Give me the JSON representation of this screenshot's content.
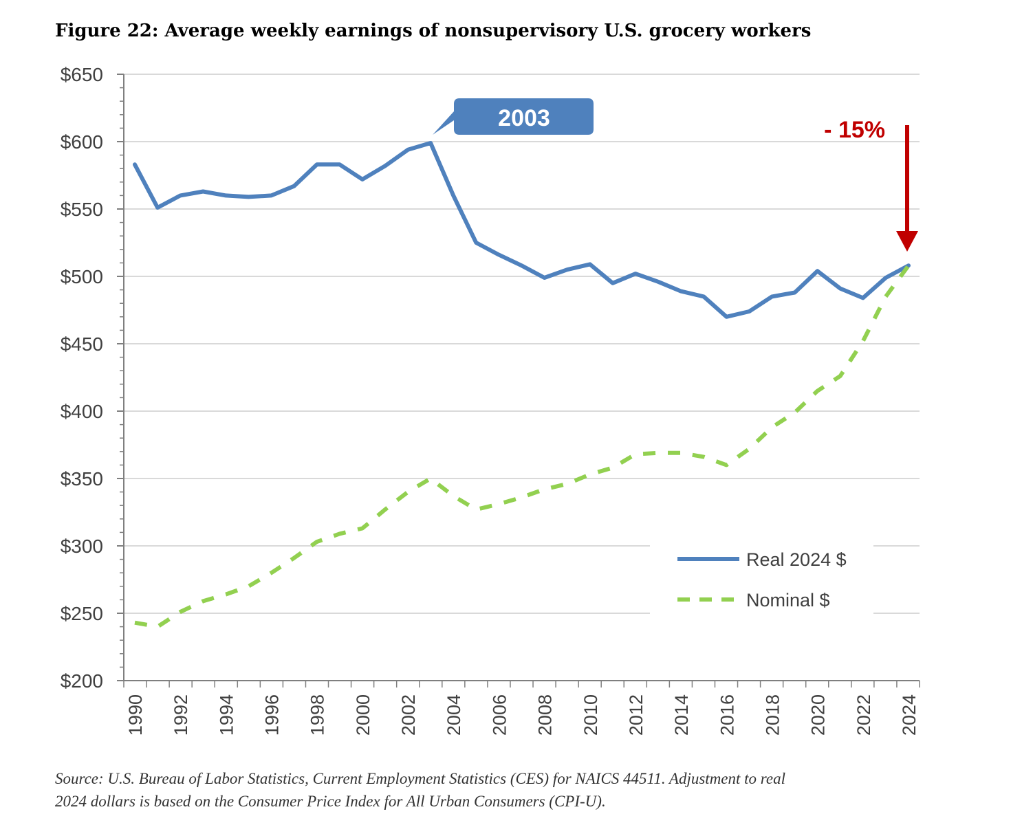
{
  "chart_data": {
    "type": "line",
    "title": "Figure 22: Average weekly earnings of nonsupervisory U.S. grocery workers",
    "xlabel": "",
    "ylabel": "",
    "x": [
      1990,
      1991,
      1992,
      1993,
      1994,
      1995,
      1996,
      1997,
      1998,
      1999,
      2000,
      2001,
      2002,
      2003,
      2004,
      2005,
      2006,
      2007,
      2008,
      2009,
      2010,
      2011,
      2012,
      2013,
      2014,
      2015,
      2016,
      2017,
      2018,
      2019,
      2020,
      2021,
      2022,
      2023,
      2024
    ],
    "ylim": [
      200,
      650
    ],
    "yticks": [
      200,
      250,
      300,
      350,
      400,
      450,
      500,
      550,
      600,
      650
    ],
    "ytick_labels": [
      "$200",
      "$250",
      "$300",
      "$350",
      "$400",
      "$450",
      "$500",
      "$550",
      "$600",
      "$650"
    ],
    "xtick_labels": [
      "1990",
      "1992",
      "1994",
      "1996",
      "1998",
      "2000",
      "2002",
      "2004",
      "2006",
      "2008",
      "2010",
      "2012",
      "2014",
      "2016",
      "2018",
      "2020",
      "2022",
      "2024"
    ],
    "grid": "horizontal",
    "legend_position": "lower-right",
    "series": [
      {
        "name": "Real 2024 $",
        "style": "solid",
        "color": "#4f81bd",
        "values": [
          583,
          551,
          560,
          563,
          560,
          559,
          560,
          567,
          583,
          583,
          572,
          582,
          594,
          599,
          560,
          525,
          516,
          508,
          499,
          505,
          509,
          495,
          502,
          496,
          489,
          485,
          470,
          474,
          485,
          488,
          504,
          491,
          484,
          499,
          508
        ]
      },
      {
        "name": "Nominal $",
        "style": "dashed",
        "color": "#92d050",
        "values": [
          243,
          240,
          251,
          259,
          264,
          270,
          280,
          291,
          303,
          309,
          313,
          327,
          340,
          350,
          337,
          327,
          331,
          336,
          342,
          346,
          353,
          358,
          368,
          369,
          369,
          366,
          360,
          372,
          388,
          399,
          415,
          426,
          452,
          485,
          508
        ]
      }
    ],
    "annotations": {
      "peak_label": "2003",
      "peak_year": 2003,
      "peak_value": 599,
      "change_label": "- 15%",
      "change_year": 2024
    },
    "colors": {
      "callout_fill": "#4f81bd",
      "arrow": "#c00000",
      "grid": "#d9d9d9",
      "axis": "#7f7f7f"
    }
  },
  "source": {
    "line1": "Source: U.S. Bureau of Labor Statistics, Current Employment Statistics (CES) for NAICS 44511. Adjustment to real",
    "line2": "2024 dollars is based on the Consumer Price Index for All Urban Consumers (CPI-U)."
  }
}
